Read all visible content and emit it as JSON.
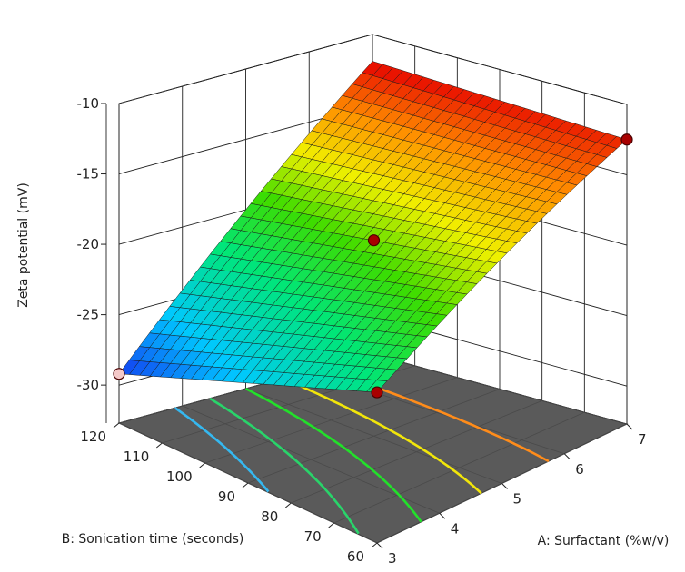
{
  "chart_data": {
    "type": "surface3d",
    "title": "",
    "xlabel": "A: Surfactant (%w/v)",
    "ylabel": "B: Sonication time (seconds)",
    "zlabel": "Zeta potential (mV)",
    "x_range": [
      3,
      7
    ],
    "y_range": [
      60,
      120
    ],
    "z_range": [
      -30,
      -10
    ],
    "x_ticks": [
      "3",
      "4",
      "5",
      "6",
      "7"
    ],
    "y_ticks": [
      "60",
      "70",
      "80",
      "90",
      "100",
      "110",
      "120"
    ],
    "z_ticks": [
      "-10",
      "-15",
      "-20",
      "-25",
      "-30"
    ],
    "grid": true,
    "surface_corners": {
      "x3_y60": -22.0,
      "x3_y120": -29.2,
      "x7_y60": -12.5,
      "x7_y120": -11.9
    },
    "contour_levels": [
      -25,
      -22.5,
      -20,
      -17.5,
      -15
    ],
    "contour_colors": [
      "#35b8f0",
      "#29d46a",
      "#22e02a",
      "#f2e60a",
      "#ff8c1a"
    ],
    "design_points": [
      {
        "x": 3,
        "y": 60,
        "z": -22.0,
        "above_surface": true
      },
      {
        "x": 5,
        "y": 90,
        "z": -18.8,
        "above_surface": true
      },
      {
        "x": 7,
        "y": 60,
        "z": -12.5,
        "above_surface": true
      },
      {
        "x": 3,
        "y": 120,
        "z": -29.2,
        "above_surface": false
      }
    ]
  }
}
